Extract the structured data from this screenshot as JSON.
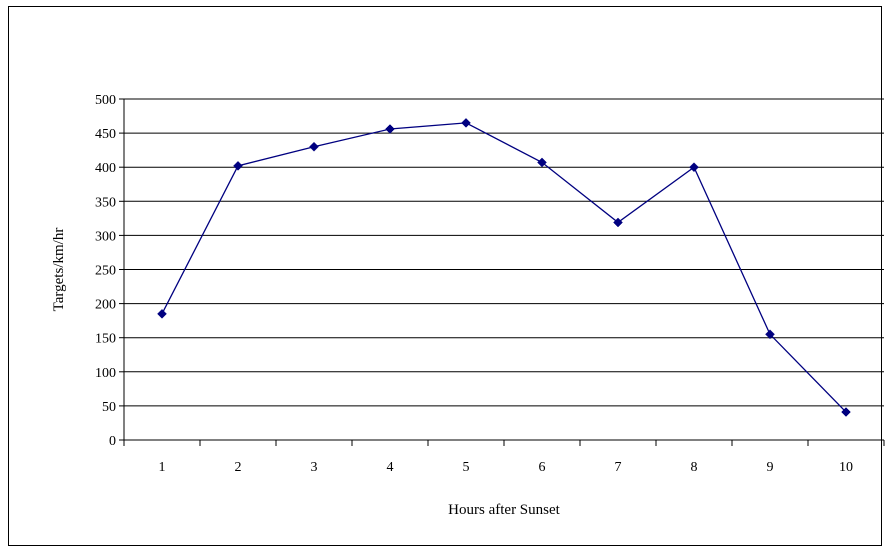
{
  "chart_data": {
    "type": "line",
    "title": "",
    "xlabel": "Hours after Sunset",
    "ylabel": "Targets/km/hr",
    "categories": [
      "1",
      "2",
      "3",
      "4",
      "5",
      "6",
      "7",
      "8",
      "9",
      "10"
    ],
    "series": [
      {
        "values": [
          185,
          402,
          430,
          456,
          465,
          407,
          319,
          400,
          155,
          41
        ],
        "color": "#000080",
        "marker": "diamond"
      }
    ],
    "ylim": [
      0,
      500
    ],
    "yticks": [
      0,
      50,
      100,
      150,
      200,
      250,
      300,
      350,
      400,
      450,
      500
    ],
    "grid": "horizontal",
    "legend": "none"
  }
}
